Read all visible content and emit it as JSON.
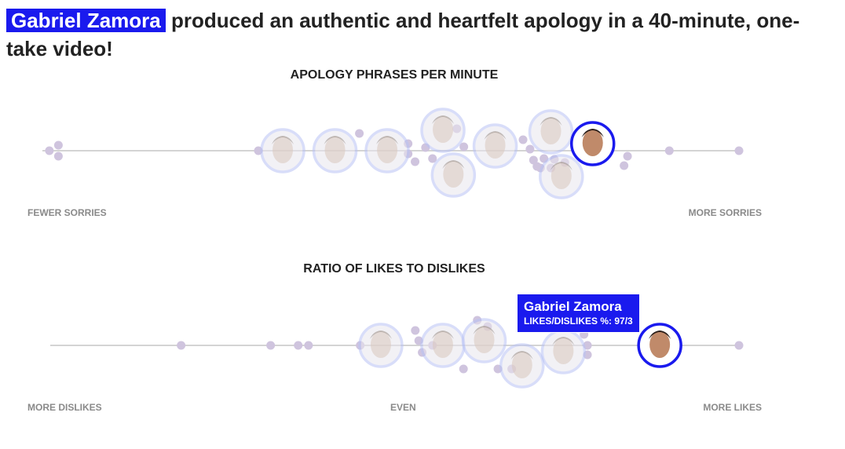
{
  "headline": {
    "highlight": "Gabriel Zamora",
    "rest": "produced an authentic and heartfelt apology in a 40-minute, one-take video!"
  },
  "colors": {
    "highlight": "#1a1aee",
    "dot": "#cfc4de",
    "faded_ring": "#b9c3f5",
    "axis": "#d4d4d4"
  },
  "chart_data": [
    {
      "type": "scatter",
      "title": "APOLOGY PHRASES PER MINUTE",
      "axis_left_label": "FEWER SORRIES",
      "axis_right_label": "MORE SORRIES",
      "xlim": [
        0,
        100
      ],
      "points": [
        {
          "x": 1,
          "y": 0
        },
        {
          "x": 2.3,
          "y": -7
        },
        {
          "x": 2.3,
          "y": 7
        },
        {
          "x": 31,
          "y": 0
        },
        {
          "x": 45.5,
          "y": -22
        },
        {
          "x": 52.5,
          "y": -9
        },
        {
          "x": 52.5,
          "y": 4
        },
        {
          "x": 53.5,
          "y": 14
        },
        {
          "x": 55,
          "y": -4
        },
        {
          "x": 56,
          "y": 10
        },
        {
          "x": 59.5,
          "y": -28
        },
        {
          "x": 60.5,
          "y": -5
        },
        {
          "x": 69,
          "y": -14
        },
        {
          "x": 70,
          "y": -2
        },
        {
          "x": 70.5,
          "y": 12
        },
        {
          "x": 71,
          "y": 20
        },
        {
          "x": 71.5,
          "y": 22
        },
        {
          "x": 72,
          "y": 10
        },
        {
          "x": 73,
          "y": 22
        },
        {
          "x": 73.5,
          "y": 11
        },
        {
          "x": 75,
          "y": 15
        },
        {
          "x": 83.5,
          "y": 19
        },
        {
          "x": 84,
          "y": 7
        },
        {
          "x": 90,
          "y": 0
        },
        {
          "x": 100,
          "y": 0
        }
      ],
      "avatars": [
        {
          "x": 34.5,
          "y": 0,
          "highlight": false
        },
        {
          "x": 42,
          "y": 0,
          "highlight": false
        },
        {
          "x": 49.5,
          "y": 0,
          "highlight": false
        },
        {
          "x": 57.5,
          "y": -26,
          "highlight": false
        },
        {
          "x": 59,
          "y": 31,
          "highlight": false
        },
        {
          "x": 65,
          "y": -6,
          "highlight": false
        },
        {
          "x": 73,
          "y": -24,
          "highlight": false
        },
        {
          "x": 74.5,
          "y": 33,
          "highlight": false
        },
        {
          "x": 79,
          "y": -9,
          "highlight": true
        }
      ]
    },
    {
      "type": "scatter",
      "title": "RATIO OF LIKES TO DISLIKES",
      "axis_left_label": "MORE DISLIKES",
      "axis_center_label": "EVEN",
      "axis_right_label": "MORE LIKES",
      "xlim": [
        0,
        100
      ],
      "points": [
        {
          "x": 19,
          "y": 0
        },
        {
          "x": 32,
          "y": 0
        },
        {
          "x": 36,
          "y": 0
        },
        {
          "x": 37.5,
          "y": 0
        },
        {
          "x": 45,
          "y": 0
        },
        {
          "x": 53,
          "y": -19
        },
        {
          "x": 53.5,
          "y": -6
        },
        {
          "x": 54,
          "y": 9
        },
        {
          "x": 55.5,
          "y": 0
        },
        {
          "x": 60,
          "y": 30
        },
        {
          "x": 62,
          "y": -32
        },
        {
          "x": 63.5,
          "y": -24
        },
        {
          "x": 65,
          "y": 30
        },
        {
          "x": 67,
          "y": 30
        },
        {
          "x": 77.5,
          "y": -14
        },
        {
          "x": 78,
          "y": 0
        },
        {
          "x": 78,
          "y": 12
        },
        {
          "x": 100,
          "y": 0
        }
      ],
      "avatars": [
        {
          "x": 48,
          "y": 0,
          "highlight": false
        },
        {
          "x": 57,
          "y": 0,
          "highlight": false
        },
        {
          "x": 63,
          "y": -6,
          "highlight": false
        },
        {
          "x": 68.5,
          "y": 26,
          "highlight": false
        },
        {
          "x": 74.5,
          "y": 8,
          "highlight": false
        },
        {
          "x": 88.5,
          "y": 0,
          "highlight": true
        }
      ],
      "tooltip": {
        "name": "Gabriel Zamora",
        "stat": "LIKES/DISLIKES %: 97/3"
      }
    }
  ]
}
